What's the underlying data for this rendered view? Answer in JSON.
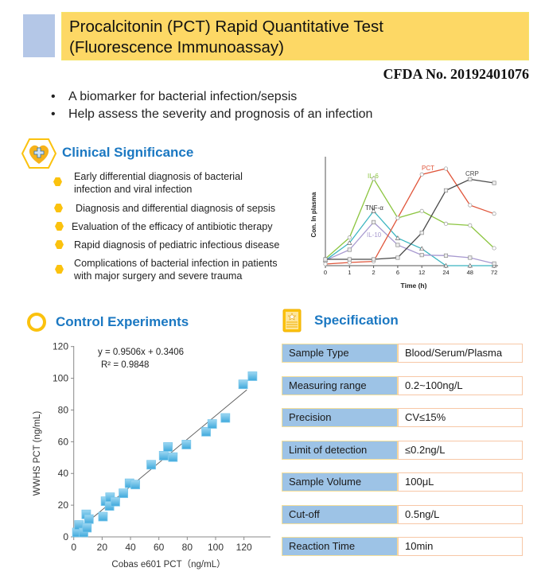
{
  "header": {
    "title_line1": "Procalcitonin (PCT) Rapid Quantitative Test",
    "title_line2": "(Fluorescence Immunoassay)",
    "cfda": "CFDA No. 20192401076"
  },
  "intro_bullets": [
    "A biomarker for bacterial infection/sepsis",
    "Help assess the severity and prognosis of an infection"
  ],
  "bullet_glyph": "•",
  "clinical": {
    "heading": "Clinical Significance",
    "icon": "heart-plus-icon",
    "items": [
      {
        "line1": "Early differential diagnosis of bacterial",
        "line2": "infection and viral infection"
      },
      {
        "line1": "Diagnosis and differential diagnosis of sepsis"
      },
      {
        "line1": "Evaluation of the efficacy of antibiotic therapy"
      },
      {
        "line1": "Rapid diagnosis of pediatric infectious disease"
      },
      {
        "line1": "Complications of bacterial infection in patients",
        "line2": "with major surgery and severe trauma"
      }
    ]
  },
  "control": {
    "heading": "Control Experiments",
    "icon": "ring-icon"
  },
  "specification": {
    "heading": "Specification",
    "icon": "document-star-icon",
    "rows": [
      {
        "label": "Sample  Type",
        "value": "Blood/Serum/Plasma"
      },
      {
        "label": "Measuring range",
        "value": "0.2~100ng/L"
      },
      {
        "label": "Precision",
        "value": "CV≤15%"
      },
      {
        "label": "Limit of detection",
        "value": "≤0.2ng/L"
      },
      {
        "label": "Sample  Volume",
        "value": "100μL"
      },
      {
        "label": "Cut-off",
        "value": "0.5ng/L"
      },
      {
        "label": "Reaction Time",
        "value": "10min"
      }
    ]
  },
  "colors": {
    "accent_blue": "#1b78c2",
    "title_yellow": "#fdd865",
    "spec_label_bg": "#9dc3e6",
    "bullet_yellow": "#fbc20e"
  },
  "chart_data": [
    {
      "type": "line",
      "xlabel": "Time (h)",
      "ylabel": "Con. In plasma",
      "categories": [
        "0",
        "1",
        "2",
        "6",
        "12",
        "24",
        "48",
        "72"
      ],
      "ylim": [
        0,
        100
      ],
      "grid": false,
      "series": [
        {
          "name": "IL-6",
          "color": "#8cc540",
          "marker": "circle",
          "values": [
            6.5,
            26.5,
            82,
            45,
            51.5,
            39.5,
            38,
            16.5
          ]
        },
        {
          "name": "TNF-α",
          "color": "#3bb5c0",
          "marker": "triangle",
          "values": [
            5,
            21.5,
            51.5,
            26,
            16,
            0,
            0,
            0
          ]
        },
        {
          "name": "IL-10",
          "color": "#a89ad0",
          "marker": "square",
          "values": [
            5,
            15,
            41,
            19.5,
            10,
            9.5,
            7.5,
            2
          ]
        },
        {
          "name": "PCT",
          "color": "#e0553a",
          "marker": "circle",
          "values": [
            1.5,
            3,
            4,
            45,
            86,
            91.5,
            57,
            49
          ]
        },
        {
          "name": "CRP",
          "color": "#4a4a4a",
          "marker": "square",
          "values": [
            6,
            6,
            6,
            7.5,
            31,
            71,
            81.5,
            78
          ]
        }
      ]
    },
    {
      "type": "scatter",
      "xlabel": "Cobas e601 PCT（ng/mL）",
      "ylabel": "WWHS PCT (ng/mL)",
      "xlim": [
        0,
        120
      ],
      "ylim": [
        0,
        120
      ],
      "xticks": [
        "0",
        "20",
        "40",
        "60",
        "80",
        "100",
        "120"
      ],
      "yticks": [
        "0",
        "20",
        "40",
        "60",
        "80",
        "100",
        "120"
      ],
      "equation": "y = 0.9506x + 0.3406",
      "r_squared": "R² = 0.9848",
      "trendline": true,
      "marker_color": "#3fa9dc",
      "points": [
        [
          2.2,
          2.8
        ],
        [
          3.7,
          7.5
        ],
        [
          6.9,
          2.8
        ],
        [
          8.8,
          14.2
        ],
        [
          10.7,
          11.2
        ],
        [
          9.3,
          5.8
        ],
        [
          20.6,
          12.8
        ],
        [
          22.4,
          22.5
        ],
        [
          25.6,
          25
        ],
        [
          25.2,
          19.5
        ],
        [
          29.3,
          22.2
        ],
        [
          35,
          27.5
        ],
        [
          39.3,
          33.8
        ],
        [
          43.4,
          33
        ],
        [
          54.6,
          45.5
        ],
        [
          63.4,
          51.2
        ],
        [
          66.4,
          56.7
        ],
        [
          69.9,
          50.3
        ],
        [
          79.4,
          58.2
        ],
        [
          93.3,
          66.3
        ],
        [
          97.6,
          71.2
        ],
        [
          106.9,
          75
        ],
        [
          119.4,
          96.2
        ],
        [
          126,
          101.3
        ]
      ]
    }
  ]
}
